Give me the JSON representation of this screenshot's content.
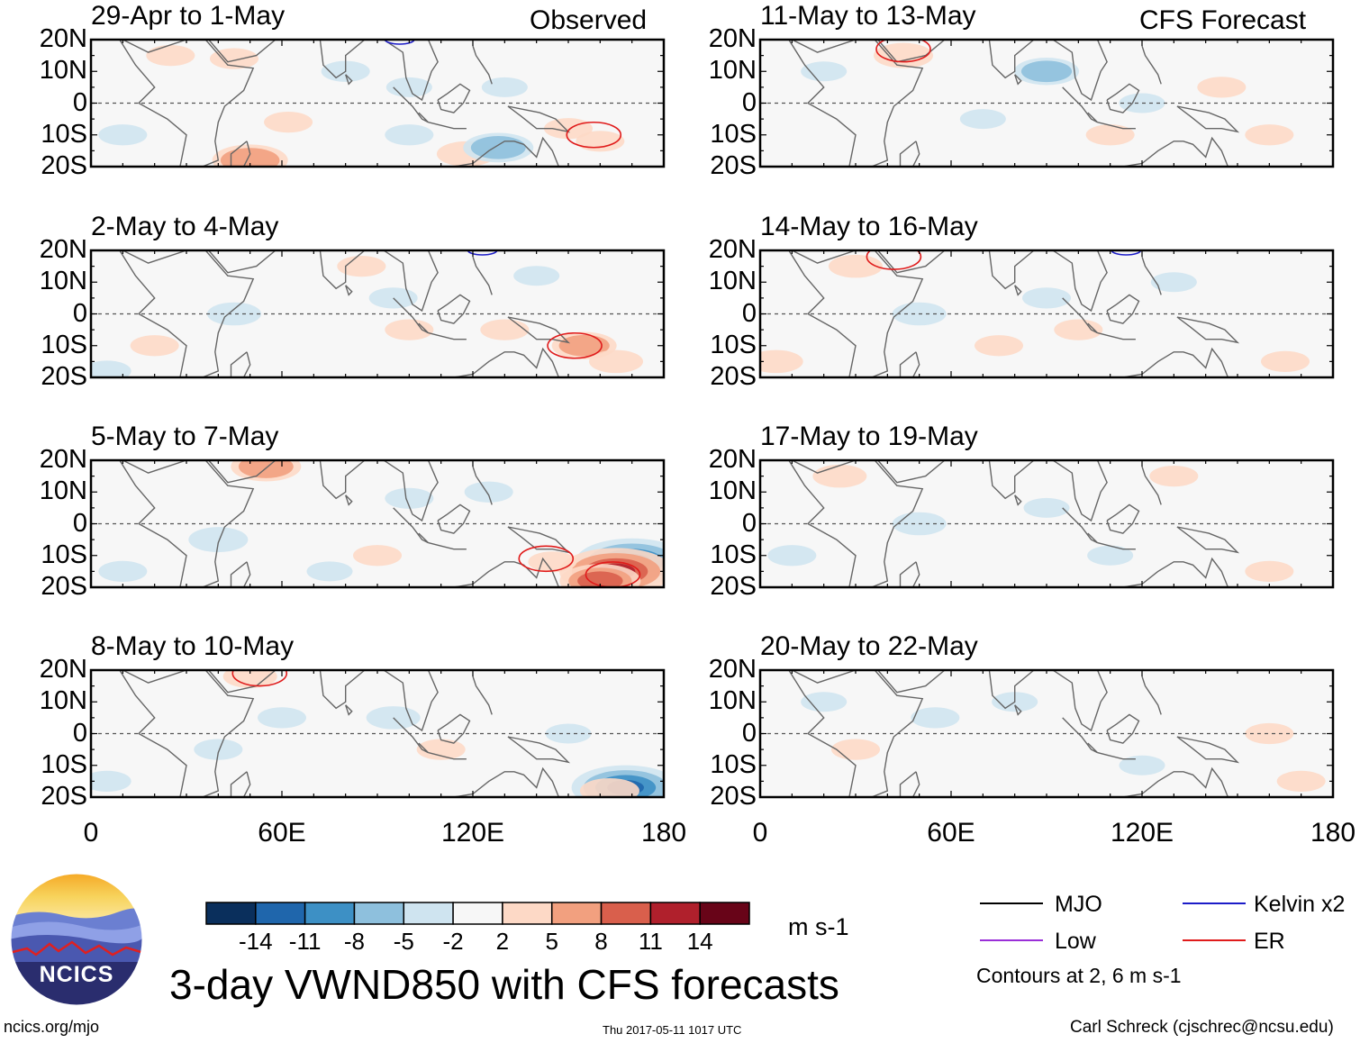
{
  "header": {
    "left_tag": "Observed",
    "right_tag": "CFS Forecast"
  },
  "chart_data": [
    {
      "type": "heatmap",
      "column": "observed",
      "title": "29-Apr to 1-May",
      "ylabels": [
        "20N",
        "10N",
        "0",
        "10S",
        "20S"
      ],
      "xlabels": [
        "0",
        "60E",
        "120E",
        "180"
      ],
      "blobs": [
        {
          "lon": 50,
          "lat": -18,
          "val": 8
        },
        {
          "lon": 62,
          "lat": -6,
          "val": 3
        },
        {
          "lon": 118,
          "lat": -16,
          "val": 5
        },
        {
          "lon": 128,
          "lat": -14,
          "val": -7
        },
        {
          "lon": 100,
          "lat": -10,
          "val": -3
        },
        {
          "lon": 160,
          "lat": -12,
          "val": 3
        },
        {
          "lon": 150,
          "lat": -8,
          "val": 3
        },
        {
          "lon": 80,
          "lat": 10,
          "val": -3
        },
        {
          "lon": 25,
          "lat": 15,
          "val": 3
        },
        {
          "lon": 45,
          "lat": 14,
          "val": 3
        },
        {
          "lon": 130,
          "lat": 5,
          "val": -2.5
        },
        {
          "lon": 100,
          "lat": 5,
          "val": -2.5
        },
        {
          "lon": 10,
          "lat": -10,
          "val": -3
        }
      ],
      "contours": [
        {
          "wave": "ER",
          "lon": 158,
          "lat": -10
        },
        {
          "wave": "Kelvin",
          "lon": 97,
          "lat": 20
        }
      ]
    },
    {
      "type": "heatmap",
      "column": "observed",
      "title": "2-May to 4-May",
      "ylabels": [
        "20N",
        "10N",
        "0",
        "10S",
        "20S"
      ],
      "xlabels": [
        "0",
        "60E",
        "120E",
        "180"
      ],
      "blobs": [
        {
          "lon": 155,
          "lat": -10,
          "val": 6
        },
        {
          "lon": 165,
          "lat": -15,
          "val": 4
        },
        {
          "lon": 130,
          "lat": -5,
          "val": 3
        },
        {
          "lon": 45,
          "lat": 0,
          "val": -4
        },
        {
          "lon": 95,
          "lat": 5,
          "val": -3
        },
        {
          "lon": 100,
          "lat": -5,
          "val": 3
        },
        {
          "lon": 20,
          "lat": -10,
          "val": 3
        },
        {
          "lon": 5,
          "lat": -18,
          "val": -3
        },
        {
          "lon": 85,
          "lat": 15,
          "val": 3
        },
        {
          "lon": 140,
          "lat": 12,
          "val": -2.5
        }
      ],
      "contours": [
        {
          "wave": "ER",
          "lon": 152,
          "lat": -10
        },
        {
          "wave": "Kelvin",
          "lon": 123,
          "lat": 20
        }
      ]
    },
    {
      "type": "heatmap",
      "column": "observed",
      "title": "5-May to 7-May",
      "ylabels": [
        "20N",
        "10N",
        "0",
        "10S",
        "20S"
      ],
      "xlabels": [
        "0",
        "60E",
        "120E",
        "180"
      ],
      "blobs": [
        {
          "lon": 170,
          "lat": -12,
          "val": -15
        },
        {
          "lon": 165,
          "lat": -15,
          "val": 15
        },
        {
          "lon": 160,
          "lat": -18,
          "val": 9
        },
        {
          "lon": 145,
          "lat": -12,
          "val": 3
        },
        {
          "lon": 55,
          "lat": 18,
          "val": 7
        },
        {
          "lon": 40,
          "lat": -5,
          "val": -5
        },
        {
          "lon": 90,
          "lat": -10,
          "val": 3
        },
        {
          "lon": 100,
          "lat": 8,
          "val": -3
        },
        {
          "lon": 125,
          "lat": 10,
          "val": -3
        },
        {
          "lon": 10,
          "lat": -15,
          "val": -3
        },
        {
          "lon": 75,
          "lat": -15,
          "val": -2.5
        }
      ],
      "contours": [
        {
          "wave": "ER",
          "lon": 143,
          "lat": -11
        },
        {
          "wave": "ER",
          "lon": 164,
          "lat": -16
        }
      ]
    },
    {
      "type": "heatmap",
      "column": "observed",
      "title": "8-May to 10-May",
      "ylabels": [
        "20N",
        "10N",
        "0",
        "10S",
        "20S"
      ],
      "xlabels": [
        "0",
        "60E",
        "120E",
        "180"
      ],
      "blobs": [
        {
          "lon": 168,
          "lat": -17,
          "val": -14
        },
        {
          "lon": 163,
          "lat": -18,
          "val": 5
        },
        {
          "lon": 95,
          "lat": 5,
          "val": -4
        },
        {
          "lon": 60,
          "lat": 5,
          "val": -3
        },
        {
          "lon": 40,
          "lat": -5,
          "val": -3
        },
        {
          "lon": 110,
          "lat": -5,
          "val": 3
        },
        {
          "lon": 150,
          "lat": 0,
          "val": -2.5
        },
        {
          "lon": 5,
          "lat": -15,
          "val": -3
        },
        {
          "lon": 50,
          "lat": 18,
          "val": 4
        }
      ],
      "contours": [
        {
          "wave": "ER",
          "lon": 53,
          "lat": 19
        }
      ]
    },
    {
      "type": "heatmap",
      "column": "forecast",
      "title": "11-May to 13-May",
      "ylabels": [
        "20N",
        "10N",
        "0",
        "10S",
        "20S"
      ],
      "xlabels": [
        "0",
        "60E",
        "120E",
        "180"
      ],
      "blobs": [
        {
          "lon": 90,
          "lat": 10,
          "val": -6
        },
        {
          "lon": 45,
          "lat": 15,
          "val": 5
        },
        {
          "lon": 145,
          "lat": 5,
          "val": 3
        },
        {
          "lon": 160,
          "lat": -10,
          "val": 3
        },
        {
          "lon": 110,
          "lat": -10,
          "val": 3
        },
        {
          "lon": 120,
          "lat": 0,
          "val": -2.5
        },
        {
          "lon": 20,
          "lat": 10,
          "val": -2.5
        },
        {
          "lon": 70,
          "lat": -5,
          "val": -2.5
        }
      ],
      "contours": [
        {
          "wave": "ER",
          "lon": 45,
          "lat": 17
        }
      ]
    },
    {
      "type": "heatmap",
      "column": "forecast",
      "title": "14-May to 16-May",
      "ylabels": [
        "20N",
        "10N",
        "0",
        "10S",
        "20S"
      ],
      "xlabels": [
        "0",
        "60E",
        "120E",
        "180"
      ],
      "blobs": [
        {
          "lon": 30,
          "lat": 15,
          "val": 4
        },
        {
          "lon": 50,
          "lat": 0,
          "val": -4
        },
        {
          "lon": 100,
          "lat": -5,
          "val": 3
        },
        {
          "lon": 90,
          "lat": 5,
          "val": -3
        },
        {
          "lon": 5,
          "lat": -15,
          "val": 4
        },
        {
          "lon": 165,
          "lat": -15,
          "val": 3
        },
        {
          "lon": 130,
          "lat": 10,
          "val": -2.5
        },
        {
          "lon": 75,
          "lat": -10,
          "val": 3
        }
      ],
      "contours": [
        {
          "wave": "ER",
          "lon": 42,
          "lat": 18
        },
        {
          "wave": "Kelvin",
          "lon": 115,
          "lat": 20
        }
      ]
    },
    {
      "type": "heatmap",
      "column": "forecast",
      "title": "17-May to 19-May",
      "ylabels": [
        "20N",
        "10N",
        "0",
        "10S",
        "20S"
      ],
      "xlabels": [
        "0",
        "60E",
        "120E",
        "180"
      ],
      "blobs": [
        {
          "lon": 25,
          "lat": 15,
          "val": 4
        },
        {
          "lon": 50,
          "lat": 0,
          "val": -4
        },
        {
          "lon": 10,
          "lat": -10,
          "val": -3
        },
        {
          "lon": 160,
          "lat": -15,
          "val": 3
        },
        {
          "lon": 130,
          "lat": 15,
          "val": 3
        },
        {
          "lon": 90,
          "lat": 5,
          "val": -2.5
        },
        {
          "lon": 110,
          "lat": -10,
          "val": -2.5
        }
      ],
      "contours": []
    },
    {
      "type": "heatmap",
      "column": "forecast",
      "title": "20-May to 22-May",
      "ylabels": [
        "20N",
        "10N",
        "0",
        "10S",
        "20S"
      ],
      "xlabels": [
        "0",
        "60E",
        "120E",
        "180"
      ],
      "blobs": [
        {
          "lon": 55,
          "lat": 5,
          "val": -3
        },
        {
          "lon": 80,
          "lat": 10,
          "val": -2.5
        },
        {
          "lon": 160,
          "lat": 0,
          "val": 3
        },
        {
          "lon": 30,
          "lat": -5,
          "val": 3
        },
        {
          "lon": 170,
          "lat": -15,
          "val": 3
        },
        {
          "lon": 120,
          "lat": -10,
          "val": -2.5
        },
        {
          "lon": 20,
          "lat": 10,
          "val": -2.5
        }
      ],
      "contours": []
    }
  ],
  "colorbar": {
    "colors": [
      "#0a2f5c",
      "#1f66ac",
      "#3d90c5",
      "#8ec0dd",
      "#cfe4f0",
      "#f7f7f7",
      "#fdd9c6",
      "#f2a07f",
      "#d95f4c",
      "#b0202c",
      "#680418"
    ],
    "labels": [
      "-14",
      "-11",
      "-8",
      "-5",
      "-2",
      "2",
      "5",
      "8",
      "11",
      "14"
    ],
    "unit": "m s-1"
  },
  "legend": {
    "items": [
      {
        "label": "MJO",
        "color": "#000000"
      },
      {
        "label": "Kelvin x2",
        "color": "#1c1cc8"
      },
      {
        "label": "Low",
        "color": "#9a2fd8"
      },
      {
        "label": "ER",
        "color": "#e01b1b"
      }
    ],
    "contour_note": "Contours at 2, 6 m s-1"
  },
  "footer": {
    "title": "3-day VWND850 with CFS forecasts",
    "logo_text": "NCICS",
    "url": "ncics.org/mjo",
    "timestamp": "Thu 2017-05-11 1017 UTC",
    "credit": "Carl Schreck (cjschrec@ncsu.edu)"
  }
}
